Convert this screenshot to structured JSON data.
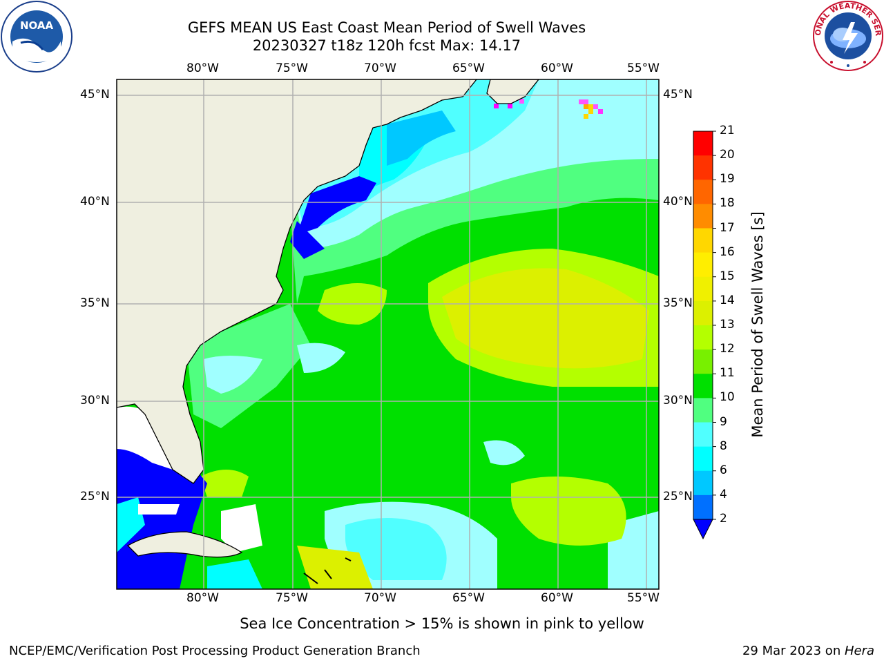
{
  "title": {
    "line1": "GEFS MEAN US East Coast Mean Period of Swell Waves",
    "line2": "20230327 t18z 120h fcst   Max: 14.17"
  },
  "logos": {
    "left": "noaa-logo",
    "left_text": "NOAA",
    "right": "nws-logo",
    "right_text": "NATIONAL WEATHER SERVICE"
  },
  "map": {
    "lon_labels_top": [
      "80°W",
      "75°W",
      "70°W",
      "65°W",
      "60°W",
      "55°W"
    ],
    "lon_labels_bottom": [
      "80°W",
      "75°W",
      "70°W",
      "65°W",
      "60°W",
      "55°W"
    ],
    "lat_labels_left": [
      "45°N",
      "40°N",
      "35°N",
      "30°N",
      "25°N"
    ],
    "lat_labels_right": [
      "45°N",
      "40°N",
      "35°N",
      "30°N",
      "25°N"
    ]
  },
  "colorbar": {
    "title": "Mean Period of Swell Waves [s]",
    "ticks": [
      "21",
      "20",
      "19",
      "18",
      "17",
      "16",
      "15",
      "14",
      "13",
      "12",
      "11",
      "10",
      "9",
      "8",
      "6",
      "4",
      "2"
    ],
    "colors_top_to_bottom": [
      "#ff0000",
      "#ff3300",
      "#ff6600",
      "#ff8c00",
      "#ffb000",
      "#ffd700",
      "#ffee00",
      "#f0f000",
      "#dcf000",
      "#b4ff00",
      "#78f000",
      "#00e000",
      "#50ff80",
      "#a0ffff",
      "#50ffff",
      "#00ffff",
      "#00c8ff",
      "#0070ff"
    ],
    "extend_color": "#0000ff"
  },
  "note": "Sea Ice Concentration > 15% is shown in pink to yellow",
  "footer": {
    "left": "NCEP/EMC/Verification Post Processing Product Generation Branch",
    "right_date": "29 Mar 2023 on ",
    "right_host": "Hera"
  }
}
